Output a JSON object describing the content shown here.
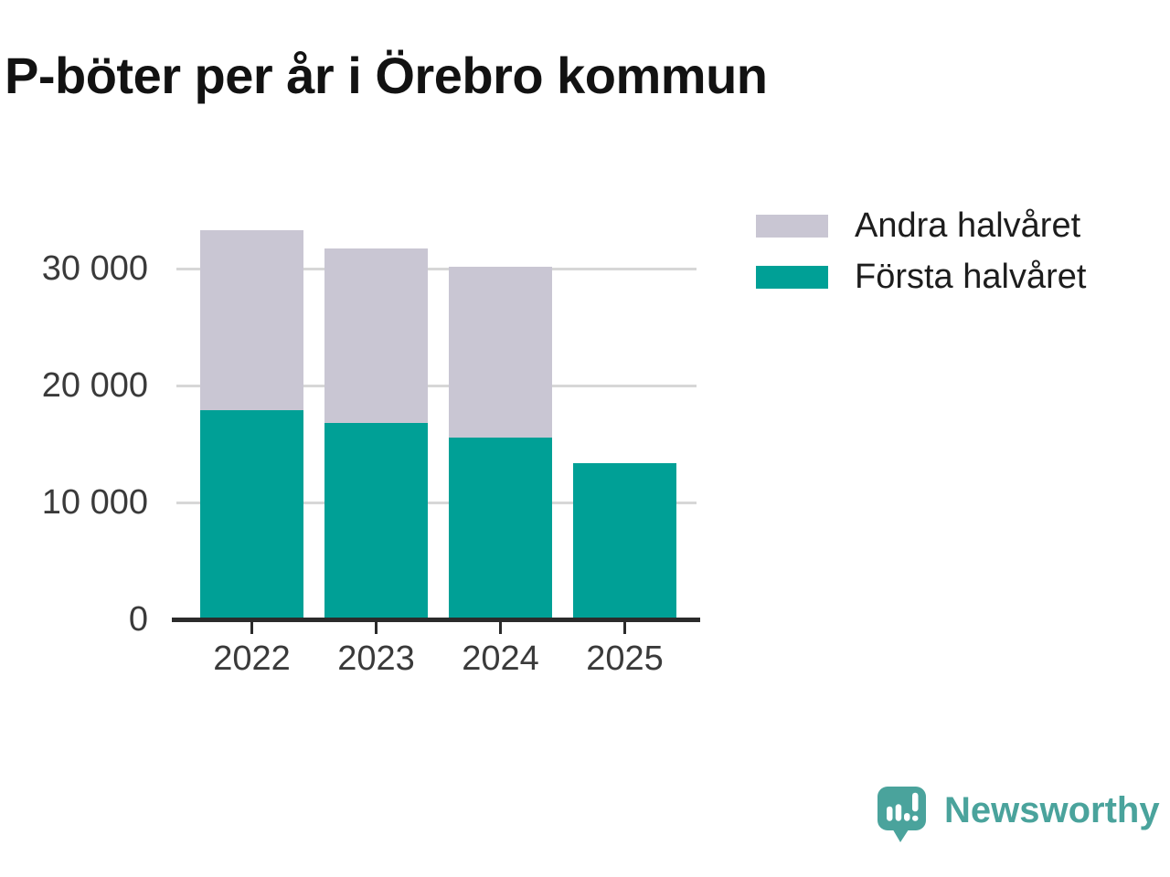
{
  "title": "P-böter per år i Örebro kommun",
  "chart_data": {
    "type": "bar",
    "stacked": true,
    "title": "P-böter per år i Örebro kommun",
    "categories": [
      "2022",
      "2023",
      "2024",
      "2025"
    ],
    "series": [
      {
        "name": "Första halvåret",
        "color": "#00a096",
        "values": [
          17800,
          16700,
          15500,
          13300
        ]
      },
      {
        "name": "Andra halvåret",
        "color": "#c9c6d3",
        "values": [
          15400,
          14900,
          14600,
          0
        ]
      }
    ],
    "totals": [
      33200,
      31600,
      30100,
      13300
    ],
    "legend": [
      {
        "label": "Andra halvåret",
        "color": "#c9c6d3"
      },
      {
        "label": "Första halvåret",
        "color": "#00a096"
      }
    ],
    "legend_position": "top-right",
    "y_ticks": [
      {
        "value": 0,
        "label": "0"
      },
      {
        "value": 10000,
        "label": "10 000"
      },
      {
        "value": 20000,
        "label": "20 000"
      },
      {
        "value": 30000,
        "label": "30 000"
      }
    ],
    "ylim": [
      0,
      35000
    ],
    "xlabel": "",
    "ylabel": "",
    "grid": "horizontal"
  },
  "colors": {
    "first_half": "#00a096",
    "second_half": "#c9c6d3",
    "axis": "#2b2b2b",
    "gridline": "#d7d7d7",
    "axis_text": "#3a3a3a",
    "brand_teal": "#4aa39c"
  },
  "branding": {
    "name": "Newsworthy",
    "icon": "newsworthy-speech-bubble-barchart-icon"
  }
}
